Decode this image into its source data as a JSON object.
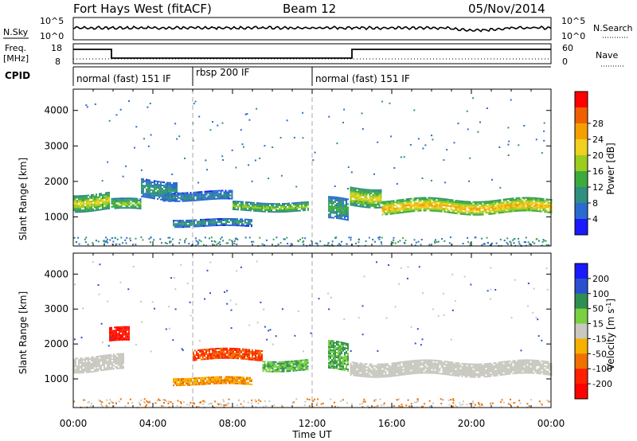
{
  "header": {
    "station": "Fort Hays West (fitACF)",
    "beam": "Beam 12",
    "date": "05/Nov/2014"
  },
  "strips": {
    "nsky_label": "N.Sky",
    "nsearch_label": "N.Search",
    "left_ticks_top": [
      "10^5",
      "10^0"
    ],
    "right_ticks_top": [
      "10^5",
      "10^0"
    ],
    "freq_label": "Freq.",
    "freq_unit": "[MHz]",
    "freq_ticks": [
      "18",
      "8"
    ],
    "nave_label": "Nave",
    "nave_ticks": [
      "60",
      "0"
    ],
    "cpid_label": "CPID"
  },
  "cpid_segments": [
    {
      "label": "normal (fast) 151 IF",
      "start": 0,
      "end": 6
    },
    {
      "label": "rbsp 200 IF",
      "start": 6,
      "end": 12
    },
    {
      "label": "normal (fast) 151 IF",
      "start": 12,
      "end": 24
    }
  ],
  "chart_data": [
    {
      "type": "heatmap",
      "panel": "power",
      "ylabel": "Slant Range [km]",
      "xlabel": "Time UT",
      "x_ticks": [
        "00:00",
        "04:00",
        "08:00",
        "12:00",
        "16:00",
        "20:00",
        "00:00"
      ],
      "xlim_hours": [
        0,
        24
      ],
      "y_ticks": [
        1000,
        2000,
        3000,
        4000
      ],
      "ylim_km": [
        180,
        4600
      ],
      "colorbar": {
        "label": "Power [dB]",
        "ticks": [
          "4",
          "8",
          "12",
          "16",
          "20",
          "24",
          "28"
        ],
        "colors": [
          "#1a1aff",
          "#2a6bd0",
          "#2f8f80",
          "#3caa3c",
          "#9bcc1f",
          "#f0d020",
          "#f5a000",
          "#f06000",
          "#ff0000"
        ]
      },
      "bands": [
        {
          "start": 0.0,
          "end": 1.8,
          "center": 1450,
          "width": 450,
          "value": 22
        },
        {
          "start": 1.9,
          "end": 3.4,
          "center": 1350,
          "width": 300,
          "value": 18
        },
        {
          "start": 3.4,
          "end": 5.2,
          "center": 1800,
          "width": 500,
          "value": 12
        },
        {
          "start": 4.5,
          "end": 8.0,
          "center": 1600,
          "width": 250,
          "value": 10
        },
        {
          "start": 5.0,
          "end": 9.0,
          "center": 850,
          "width": 180,
          "value": 12
        },
        {
          "start": 8.0,
          "end": 11.8,
          "center": 1300,
          "width": 250,
          "value": 18
        },
        {
          "start": 12.8,
          "end": 13.8,
          "center": 1200,
          "width": 600,
          "value": 14
        },
        {
          "start": 13.9,
          "end": 15.5,
          "center": 1600,
          "width": 500,
          "value": 22
        },
        {
          "start": 15.5,
          "end": 24.0,
          "center": 1300,
          "width": 400,
          "value": 26
        }
      ]
    },
    {
      "type": "heatmap",
      "panel": "velocity",
      "ylabel": "Slant Range [km]",
      "xlabel": "Time UT",
      "x_ticks": [
        "00:00",
        "04:00",
        "08:00",
        "12:00",
        "16:00",
        "20:00",
        "00:00"
      ],
      "xlim_hours": [
        0,
        24
      ],
      "y_ticks": [
        1000,
        2000,
        3000,
        4000
      ],
      "ylim_km": [
        180,
        4600
      ],
      "colorbar": {
        "label": "Velocity [m s^-1]",
        "ticks": [
          "200",
          "100",
          "50",
          "15",
          "-15",
          "-50",
          "-100",
          "-200"
        ],
        "colors": [
          "#1a1aff",
          "#2a50d0",
          "#2f8f50",
          "#7ad040",
          "#c8c8c0",
          "#f5b000",
          "#f07000",
          "#ff2000",
          "#ff0000"
        ]
      },
      "bands": [
        {
          "start": 0.0,
          "end": 2.5,
          "center": 1450,
          "width": 450,
          "value": 0
        },
        {
          "start": 1.8,
          "end": 2.8,
          "center": 2250,
          "width": 400,
          "value": -200
        },
        {
          "start": 5.0,
          "end": 9.0,
          "center": 950,
          "width": 200,
          "value": -50
        },
        {
          "start": 6.0,
          "end": 9.5,
          "center": 1700,
          "width": 300,
          "value": -100
        },
        {
          "start": 9.5,
          "end": 11.8,
          "center": 1400,
          "width": 300,
          "value": 50
        },
        {
          "start": 12.8,
          "end": 13.8,
          "center": 1600,
          "width": 800,
          "value": 50
        },
        {
          "start": 13.9,
          "end": 24.0,
          "center": 1300,
          "width": 400,
          "value": 0
        }
      ]
    }
  ]
}
